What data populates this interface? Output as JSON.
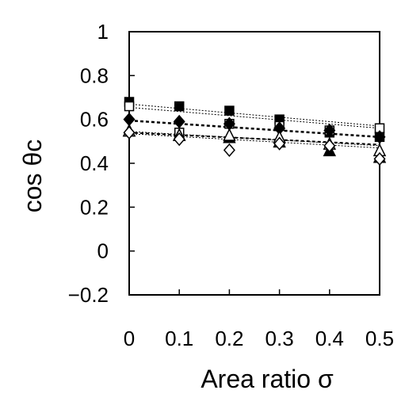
{
  "chart_data": {
    "type": "scatter",
    "xlabel": "Area ratio  σ",
    "ylabel": "cos θc",
    "xlim": [
      0,
      0.5
    ],
    "ylim": [
      -0.2,
      1.0
    ],
    "xticks": [
      0,
      0.1,
      0.2,
      0.3,
      0.4,
      0.5
    ],
    "xtick_labels": [
      "0",
      "0.1",
      "0.2",
      "0.3",
      "0.4",
      "0.5"
    ],
    "yticks": [
      -0.2,
      0,
      0.2,
      0.4,
      0.6,
      0.8,
      1.0
    ],
    "ytick_labels": [
      "−0.2",
      "0",
      "0.2",
      "0.4",
      "0.6",
      "0.8",
      "1"
    ],
    "grid": false,
    "series": [
      {
        "marker": "square-filled",
        "x": [
          0,
          0.1,
          0.2,
          0.3,
          0.4,
          0.5
        ],
        "y": [
          0.68,
          0.66,
          0.64,
          0.6,
          0.54,
          0.52
        ],
        "trend": [
          0.67,
          0.57
        ]
      },
      {
        "marker": "square-open",
        "x": [
          0,
          0.1,
          0.2,
          0.3,
          0.4,
          0.5
        ],
        "y": [
          0.66,
          0.54,
          0.58,
          0.57,
          0.55,
          0.56
        ],
        "trend": [
          0.655,
          0.56
        ]
      },
      {
        "marker": "diamond-filled",
        "x": [
          0,
          0.1,
          0.2,
          0.3,
          0.4,
          0.5
        ],
        "y": [
          0.6,
          0.59,
          0.58,
          0.56,
          0.55,
          0.52
        ],
        "trend": [
          0.595,
          0.52
        ]
      },
      {
        "marker": "triangle-filled",
        "x": [
          0,
          0.1,
          0.2,
          0.3,
          0.4,
          0.5
        ],
        "y": [
          0.55,
          0.53,
          0.52,
          0.5,
          0.46,
          0.43
        ],
        "trend": [
          0.54,
          0.485
        ]
      },
      {
        "marker": "triangle-open",
        "x": [
          0,
          0.1,
          0.2,
          0.3,
          0.4,
          0.5
        ],
        "y": [
          0.55,
          0.53,
          0.53,
          0.52,
          0.49,
          0.46
        ],
        "trend": [
          0.545,
          0.48
        ]
      },
      {
        "marker": "diamond-open",
        "x": [
          0,
          0.1,
          0.2,
          0.3,
          0.4,
          0.5
        ],
        "y": [
          0.54,
          0.51,
          0.46,
          0.49,
          0.48,
          0.42
        ],
        "trend": [
          0.535,
          0.47
        ]
      }
    ]
  }
}
